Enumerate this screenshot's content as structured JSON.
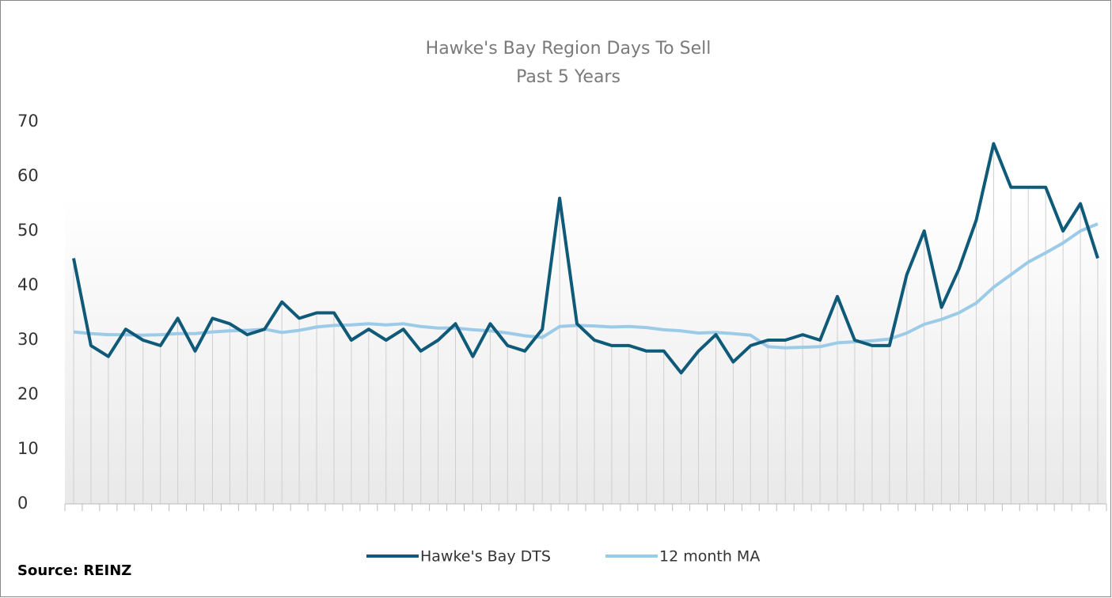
{
  "chart_data": {
    "type": "line",
    "title": "Hawke's Bay Region Days To Sell",
    "subtitle": "Past 5 Years",
    "source": "Source: REINZ",
    "categories": [
      null,
      null,
      null,
      null,
      null,
      null,
      null,
      null,
      null,
      null,
      null,
      null,
      null,
      null,
      null,
      null,
      null,
      null,
      null,
      null,
      null,
      null,
      null,
      null,
      null,
      null,
      null,
      null,
      null,
      null,
      null,
      null,
      null,
      null,
      null,
      null,
      null,
      null,
      null,
      null,
      null,
      null,
      null,
      null,
      null,
      null,
      null,
      null,
      null,
      null,
      null,
      null,
      null,
      null,
      null,
      null,
      null,
      null,
      null,
      null
    ],
    "series": [
      {
        "name": "Hawke's Bay DTS",
        "color": "#0e5a78",
        "values": [
          45,
          29,
          27,
          32,
          30,
          29,
          34,
          28,
          34,
          33,
          31,
          32,
          37,
          34,
          35,
          35,
          30,
          32,
          30,
          32,
          28,
          30,
          33,
          27,
          33,
          29,
          28,
          32,
          56,
          33,
          30,
          29,
          29,
          28,
          28,
          24,
          28,
          31,
          26,
          29,
          30,
          30,
          31,
          30,
          38,
          30,
          29,
          29,
          42,
          50,
          36,
          43,
          52,
          66,
          58,
          58,
          58,
          50,
          55,
          45
        ]
      },
      {
        "name": "12 month MA",
        "color": "#9ccbe8",
        "values": [
          31.5,
          31.2,
          31,
          31,
          30.9,
          31,
          31.2,
          31.2,
          31.5,
          31.7,
          31.8,
          32,
          31.4,
          31.8,
          32.4,
          32.7,
          32.8,
          33,
          32.8,
          33,
          32.5,
          32.2,
          32.2,
          31.9,
          31.7,
          31.3,
          30.8,
          30.5,
          32.5,
          32.7,
          32.6,
          32.4,
          32.5,
          32.3,
          31.9,
          31.7,
          31.3,
          31.4,
          31.2,
          30.9,
          28.8,
          28.6,
          28.7,
          28.8,
          29.5,
          29.7,
          29.9,
          30.2,
          31.3,
          32.9,
          33.8,
          35,
          36.8,
          39.7,
          42,
          44.3,
          46,
          47.8,
          50,
          51.3
        ]
      }
    ],
    "ylim": [
      0,
      70
    ],
    "yticks": [
      0,
      10,
      20,
      30,
      40,
      50,
      60,
      70
    ],
    "grid": false,
    "legend": "bottom"
  }
}
